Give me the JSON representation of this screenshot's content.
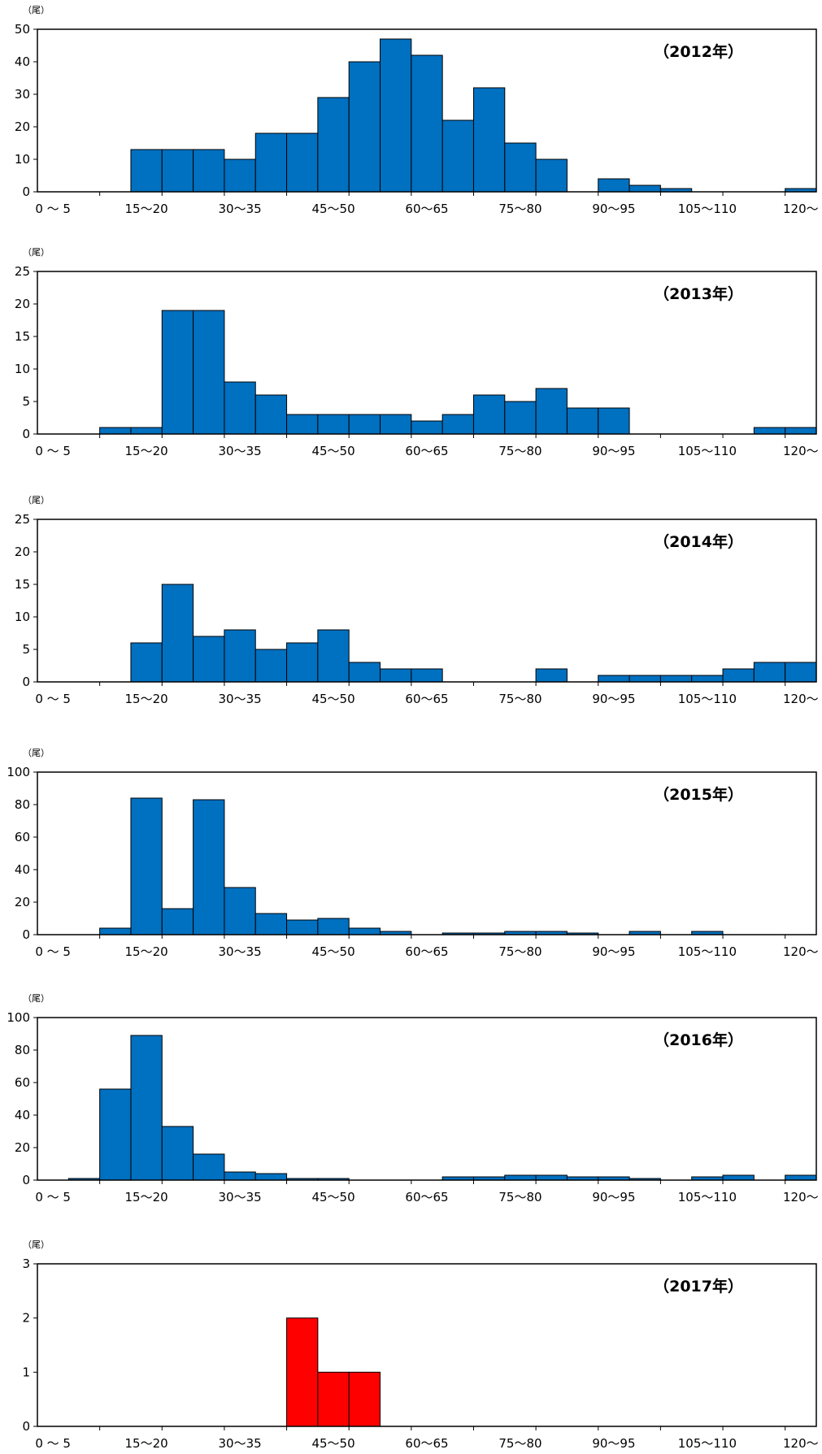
{
  "chart_data": [
    {
      "type": "bar",
      "title": "（2012年）",
      "unit": "（尾）",
      "ylim": [
        0,
        50
      ],
      "yticks": [
        0,
        10,
        20,
        30,
        40,
        50
      ],
      "categories": [
        "0～5",
        "5～10",
        "10～15",
        "15～20",
        "20～25",
        "25～30",
        "30～35",
        "35～40",
        "40～45",
        "45～50",
        "50～55",
        "55～60",
        "60～65",
        "65～70",
        "70～75",
        "75～80",
        "80～85",
        "85～90",
        "90～95",
        "95～100",
        "100～105",
        "105～110",
        "110～115",
        "115～120",
        "120～"
      ],
      "xtick_labels": [
        "0 ～ 5",
        "15～20",
        "30～35",
        "45～50",
        "60～65",
        "75～80",
        "90～95",
        "105～110",
        "120～"
      ],
      "values": [
        0,
        0,
        0,
        13,
        13,
        13,
        10,
        18,
        18,
        29,
        40,
        47,
        42,
        22,
        32,
        15,
        10,
        0,
        4,
        2,
        1,
        0,
        0,
        0,
        1
      ],
      "color": "#0070C0"
    },
    {
      "type": "bar",
      "title": "（2013年）",
      "unit": "（尾）",
      "ylim": [
        0,
        25
      ],
      "yticks": [
        0,
        5,
        10,
        15,
        20,
        25
      ],
      "categories": [
        "0～5",
        "5～10",
        "10～15",
        "15～20",
        "20～25",
        "25～30",
        "30～35",
        "35～40",
        "40～45",
        "45～50",
        "50～55",
        "55～60",
        "60～65",
        "65～70",
        "70～75",
        "75～80",
        "80～85",
        "85～90",
        "90～95",
        "95～100",
        "100～105",
        "105～110",
        "110～115",
        "115～120",
        "120～"
      ],
      "xtick_labels": [
        "0 ～ 5",
        "15～20",
        "30～35",
        "45～50",
        "60～65",
        "75～80",
        "90～95",
        "105～110",
        "120～"
      ],
      "values": [
        0,
        0,
        1,
        1,
        19,
        19,
        8,
        6,
        3,
        3,
        3,
        3,
        2,
        3,
        6,
        5,
        7,
        4,
        4,
        0,
        0,
        0,
        0,
        1,
        1
      ],
      "color": "#0070C0"
    },
    {
      "type": "bar",
      "title": "（2014年）",
      "unit": "（尾）",
      "ylim": [
        0,
        25
      ],
      "yticks": [
        0,
        5,
        10,
        15,
        20,
        25
      ],
      "categories": [
        "0～5",
        "5～10",
        "10～15",
        "15～20",
        "20～25",
        "25～30",
        "30～35",
        "35～40",
        "40～45",
        "45～50",
        "50～55",
        "55～60",
        "60～65",
        "65～70",
        "70～75",
        "75～80",
        "80～85",
        "85～90",
        "90～95",
        "95～100",
        "100～105",
        "105～110",
        "110～115",
        "115～120",
        "120～"
      ],
      "xtick_labels": [
        "0 ～ 5",
        "15～20",
        "30～35",
        "45～50",
        "60～65",
        "75～80",
        "90～95",
        "105～110",
        "120～"
      ],
      "values": [
        0,
        0,
        0,
        6,
        15,
        7,
        8,
        5,
        6,
        8,
        3,
        2,
        2,
        0,
        0,
        0,
        2,
        0,
        1,
        1,
        1,
        1,
        2,
        3,
        3
      ],
      "color": "#0070C0"
    },
    {
      "type": "bar",
      "title": "（2015年）",
      "unit": "（尾）",
      "ylim": [
        0,
        100
      ],
      "yticks": [
        0,
        20,
        40,
        60,
        80,
        100
      ],
      "categories": [
        "0～5",
        "5～10",
        "10～15",
        "15～20",
        "20～25",
        "25～30",
        "30～35",
        "35～40",
        "40～45",
        "45～50",
        "50～55",
        "55～60",
        "60～65",
        "65～70",
        "70～75",
        "75～80",
        "80～85",
        "85～90",
        "90～95",
        "95～100",
        "100～105",
        "105～110",
        "110～115",
        "115～120",
        "120～"
      ],
      "xtick_labels": [
        "0 ～ 5",
        "15～20",
        "30～35",
        "45～50",
        "60～65",
        "75～80",
        "90～95",
        "105～110",
        "120～"
      ],
      "values": [
        0,
        0,
        4,
        84,
        16,
        83,
        29,
        13,
        9,
        10,
        4,
        2,
        0,
        1,
        1,
        2,
        2,
        1,
        0,
        2,
        0,
        2,
        0,
        0,
        0
      ],
      "color": "#0070C0"
    },
    {
      "type": "bar",
      "title": "（2016年）",
      "unit": "（尾）",
      "ylim": [
        0,
        100
      ],
      "yticks": [
        0,
        20,
        40,
        60,
        80,
        100
      ],
      "categories": [
        "0～5",
        "5～10",
        "10～15",
        "15～20",
        "20～25",
        "25～30",
        "30～35",
        "35～40",
        "40～45",
        "45～50",
        "50～55",
        "55～60",
        "60～65",
        "65～70",
        "70～75",
        "75～80",
        "80～85",
        "85～90",
        "90～95",
        "95～100",
        "100～105",
        "105～110",
        "110～115",
        "115～120",
        "120～"
      ],
      "xtick_labels": [
        "0 ～ 5",
        "15～20",
        "30～35",
        "45～50",
        "60～65",
        "75～80",
        "90～95",
        "105～110",
        "120～"
      ],
      "values": [
        0,
        1,
        56,
        89,
        33,
        16,
        5,
        4,
        1,
        1,
        0,
        0,
        0,
        2,
        2,
        3,
        3,
        2,
        2,
        1,
        0,
        2,
        3,
        0,
        3
      ],
      "color": "#0070C0"
    },
    {
      "type": "bar",
      "title": "（2017年）",
      "unit": "（尾）",
      "ylim": [
        0,
        3
      ],
      "yticks": [
        0,
        1,
        2,
        3
      ],
      "categories": [
        "0～5",
        "5～10",
        "10～15",
        "15～20",
        "20～25",
        "25～30",
        "30～35",
        "35～40",
        "40～45",
        "45～50",
        "50～55",
        "55～60",
        "60～65",
        "65～70",
        "70～75",
        "75～80",
        "80～85",
        "85～90",
        "90～95",
        "95～100",
        "100～105",
        "105～110",
        "110～115",
        "115～120",
        "120～"
      ],
      "xtick_labels": [
        "0 ～ 5",
        "15～20",
        "30～35",
        "45～50",
        "60～65",
        "75～80",
        "90～95",
        "105～110",
        "120～"
      ],
      "values": [
        0,
        0,
        0,
        0,
        0,
        0,
        0,
        0,
        2,
        1,
        1,
        0,
        0,
        0,
        0,
        0,
        0,
        0,
        0,
        0,
        0,
        0,
        0,
        0,
        0
      ],
      "color": "#FF0000"
    }
  ]
}
